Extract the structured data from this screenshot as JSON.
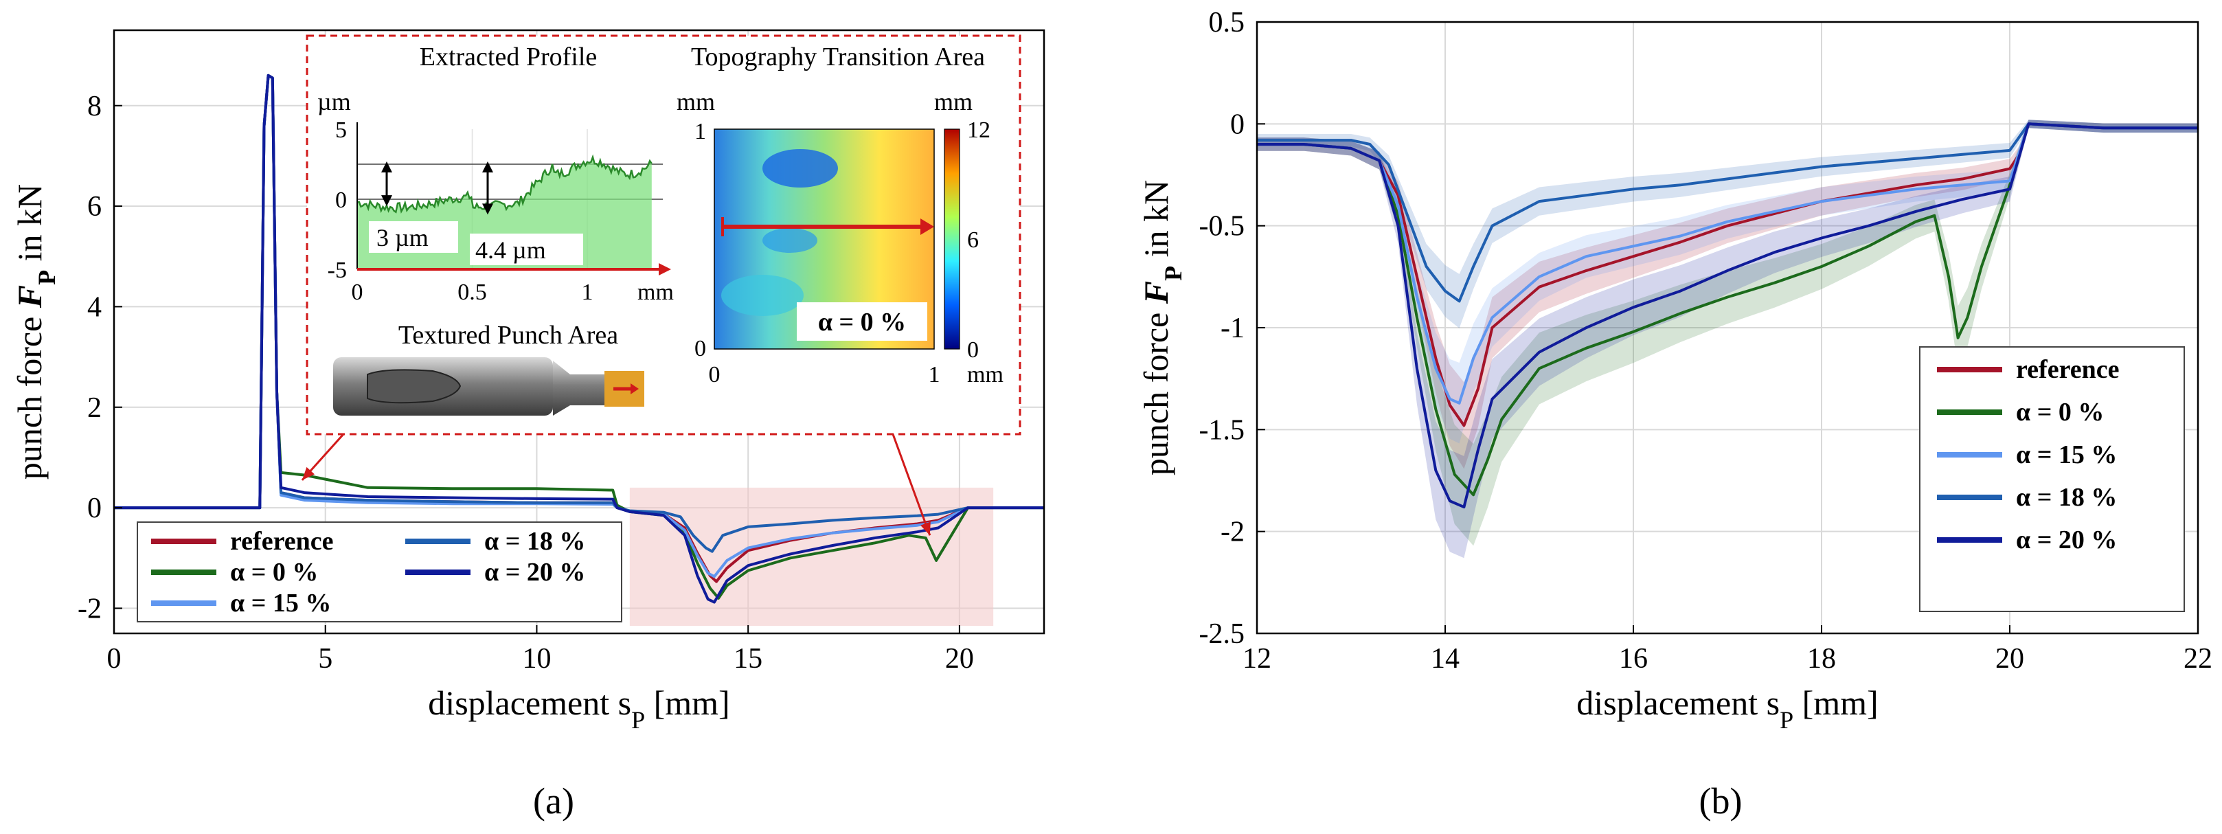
{
  "colors": {
    "reference": "#a5142a",
    "alpha0": "#1c6b1c",
    "alpha15": "#5f96f0",
    "alpha18": "#1f5fb0",
    "alpha20": "#101c9a",
    "highlight_box": "#d11a1a",
    "grid": "#d9d9d9"
  },
  "legend_labels": [
    "reference",
    "α = 0 %",
    "α = 15 %",
    "α = 18 %",
    "α = 20 %"
  ],
  "panel_a": {
    "caption": "(a)",
    "inset": {
      "profile_title": "Extracted Profile",
      "profile_unit": "µm",
      "profile_xunit": "mm",
      "profile_yticks": [
        "5",
        "0",
        "-5"
      ],
      "profile_xticks": [
        "0",
        "0.5",
        "1"
      ],
      "step1": "3 µm",
      "step2": "4.4 µm",
      "punch_title": "Textured Punch Area",
      "topo_title": "Topography Transition Area",
      "topo_unit_left": "mm",
      "topo_unit_right": "mm",
      "topo_unit_bottom": "mm",
      "topo_yticks": [
        "1",
        "0"
      ],
      "topo_xticks": [
        "0",
        "1"
      ],
      "colorbar_ticks": [
        "12",
        "6",
        "0"
      ],
      "topo_label": "α = 0 %"
    }
  },
  "panel_b": {
    "caption": "(b)"
  },
  "chart_data": [
    {
      "type": "line",
      "panel": "(a)",
      "xlabel": "displacement s_P [mm]",
      "ylabel": "punch force F_P in kN",
      "xlim": [
        0,
        22
      ],
      "ylim": [
        -2.5,
        9.5
      ],
      "xticks": [
        0,
        5,
        10,
        15,
        20
      ],
      "yticks": [
        -2,
        0,
        2,
        4,
        6,
        8
      ],
      "grid": true,
      "legend_position": "bottom-left",
      "series": [
        {
          "name": "reference",
          "x": [
            0,
            3.45,
            3.55,
            3.65,
            3.75,
            3.85,
            3.95,
            4.5,
            6,
            8,
            10,
            11.8,
            11.9,
            12.2,
            13,
            13.5,
            13.8,
            14.1,
            14.25,
            14.5,
            15,
            16,
            17,
            18,
            19,
            19.5,
            20.2,
            22
          ],
          "y": [
            0,
            0,
            7.6,
            8.6,
            8.55,
            2.3,
            0.3,
            0.2,
            0.15,
            0.12,
            0.1,
            0.1,
            0,
            -0.08,
            -0.12,
            -0.4,
            -0.9,
            -1.35,
            -1.47,
            -1.2,
            -0.85,
            -0.65,
            -0.5,
            -0.4,
            -0.32,
            -0.25,
            0,
            0
          ]
        },
        {
          "name": "α = 0 %",
          "x": [
            0,
            3.45,
            3.55,
            3.65,
            3.75,
            3.85,
            3.95,
            4.5,
            6,
            8,
            10,
            11.8,
            11.9,
            12.2,
            13,
            13.5,
            13.8,
            14.1,
            14.3,
            14.5,
            15,
            16,
            17,
            18,
            18.8,
            19.2,
            19.45,
            19.7,
            20.2,
            22
          ],
          "y": [
            0,
            0,
            7.6,
            8.6,
            8.55,
            2.3,
            0.7,
            0.65,
            0.4,
            0.38,
            0.38,
            0.35,
            0.05,
            -0.08,
            -0.15,
            -0.5,
            -1.1,
            -1.6,
            -1.8,
            -1.55,
            -1.25,
            -1.0,
            -0.85,
            -0.7,
            -0.55,
            -0.6,
            -1.05,
            -0.7,
            0,
            0
          ]
        },
        {
          "name": "α = 15 %",
          "x": [
            0,
            3.45,
            3.55,
            3.65,
            3.75,
            3.85,
            3.95,
            4.5,
            6,
            8,
            10,
            11.8,
            11.9,
            12.2,
            13,
            13.5,
            13.8,
            14.05,
            14.2,
            14.5,
            15,
            16,
            17,
            18,
            19,
            19.5,
            20.2,
            22
          ],
          "y": [
            0,
            0,
            7.6,
            8.6,
            8.55,
            2.3,
            0.25,
            0.15,
            0.1,
            0.08,
            0.08,
            0.07,
            0,
            -0.08,
            -0.12,
            -0.45,
            -0.95,
            -1.3,
            -1.37,
            -1.05,
            -0.8,
            -0.62,
            -0.5,
            -0.42,
            -0.35,
            -0.28,
            0,
            0
          ]
        },
        {
          "name": "α = 18 %",
          "x": [
            0,
            3.45,
            3.55,
            3.65,
            3.75,
            3.85,
            3.95,
            4.5,
            6,
            8,
            10,
            11.8,
            11.9,
            12.2,
            13,
            13.4,
            13.7,
            14.0,
            14.15,
            14.4,
            15,
            16,
            17,
            18,
            19,
            19.5,
            20.2,
            22
          ],
          "y": [
            0,
            0,
            7.6,
            8.6,
            8.55,
            2.3,
            0.3,
            0.2,
            0.15,
            0.12,
            0.1,
            0.1,
            0,
            -0.06,
            -0.09,
            -0.18,
            -0.55,
            -0.8,
            -0.87,
            -0.55,
            -0.38,
            -0.32,
            -0.25,
            -0.2,
            -0.16,
            -0.13,
            0,
            0
          ]
        },
        {
          "name": "α = 20 %",
          "x": [
            0,
            3.45,
            3.55,
            3.65,
            3.75,
            3.85,
            3.95,
            4.5,
            6,
            8,
            10,
            11.8,
            11.9,
            12.2,
            13,
            13.5,
            13.8,
            14.05,
            14.2,
            14.5,
            15,
            16,
            17,
            18,
            19,
            19.5,
            20.2,
            22
          ],
          "y": [
            0,
            0,
            7.6,
            8.6,
            8.55,
            2.3,
            0.4,
            0.3,
            0.22,
            0.2,
            0.18,
            0.17,
            0,
            -0.08,
            -0.15,
            -0.55,
            -1.35,
            -1.82,
            -1.88,
            -1.45,
            -1.15,
            -0.92,
            -0.75,
            -0.6,
            -0.48,
            -0.4,
            0,
            0
          ]
        }
      ]
    },
    {
      "type": "line",
      "panel": "(b)",
      "xlabel": "displacement s_P [mm]",
      "ylabel": "punch force F_P in kN",
      "xlim": [
        12,
        22
      ],
      "ylim": [
        -2.5,
        0.5
      ],
      "xticks": [
        12,
        14,
        16,
        18,
        20,
        22
      ],
      "yticks": [
        -2.5,
        -2,
        -1.5,
        -1,
        -0.5,
        0,
        0.5
      ],
      "grid": true,
      "legend_position": "bottom-right",
      "series": [
        {
          "name": "reference",
          "x": [
            12,
            12.5,
            13,
            13.3,
            13.5,
            13.7,
            13.9,
            14.05,
            14.2,
            14.35,
            14.5,
            15,
            15.5,
            16,
            16.5,
            17,
            17.5,
            18,
            18.5,
            19,
            19.5,
            20,
            20.1,
            20.2,
            21,
            22
          ],
          "y": [
            -0.1,
            -0.1,
            -0.12,
            -0.18,
            -0.35,
            -0.75,
            -1.15,
            -1.38,
            -1.48,
            -1.3,
            -1.0,
            -0.8,
            -0.72,
            -0.65,
            -0.58,
            -0.5,
            -0.44,
            -0.38,
            -0.34,
            -0.3,
            -0.27,
            -0.22,
            -0.15,
            0,
            -0.02,
            -0.02
          ]
        },
        {
          "name": "α = 0 %",
          "x": [
            12,
            12.5,
            13,
            13.3,
            13.5,
            13.7,
            13.9,
            14.1,
            14.3,
            14.45,
            14.6,
            15,
            15.5,
            16,
            16.5,
            17,
            17.5,
            18,
            18.5,
            19,
            19.2,
            19.35,
            19.45,
            19.55,
            19.7,
            20,
            20.2,
            21,
            22
          ],
          "y": [
            -0.1,
            -0.1,
            -0.12,
            -0.18,
            -0.45,
            -0.95,
            -1.4,
            -1.72,
            -1.82,
            -1.65,
            -1.45,
            -1.2,
            -1.1,
            -1.02,
            -0.93,
            -0.85,
            -0.78,
            -0.7,
            -0.6,
            -0.48,
            -0.45,
            -0.75,
            -1.05,
            -0.95,
            -0.7,
            -0.3,
            0,
            -0.02,
            -0.02
          ]
        },
        {
          "name": "α = 15 %",
          "x": [
            12,
            12.5,
            13,
            13.3,
            13.5,
            13.7,
            13.9,
            14.05,
            14.15,
            14.3,
            14.5,
            15,
            15.5,
            16,
            16.5,
            17,
            17.5,
            18,
            18.5,
            19,
            19.5,
            20,
            20.2,
            21,
            22
          ],
          "y": [
            -0.1,
            -0.1,
            -0.12,
            -0.18,
            -0.4,
            -0.85,
            -1.2,
            -1.35,
            -1.37,
            -1.15,
            -0.95,
            -0.75,
            -0.65,
            -0.6,
            -0.55,
            -0.48,
            -0.43,
            -0.38,
            -0.35,
            -0.32,
            -0.3,
            -0.28,
            0,
            -0.02,
            -0.02
          ]
        },
        {
          "name": "α = 18 %",
          "x": [
            12,
            12.5,
            13,
            13.2,
            13.4,
            13.6,
            13.8,
            14.0,
            14.15,
            14.3,
            14.5,
            15,
            15.5,
            16,
            16.5,
            17,
            17.5,
            18,
            18.5,
            19,
            19.5,
            20,
            20.2,
            21,
            22
          ],
          "y": [
            -0.08,
            -0.08,
            -0.08,
            -0.1,
            -0.2,
            -0.45,
            -0.7,
            -0.82,
            -0.87,
            -0.7,
            -0.5,
            -0.38,
            -0.35,
            -0.32,
            -0.3,
            -0.27,
            -0.24,
            -0.21,
            -0.19,
            -0.17,
            -0.15,
            -0.13,
            0,
            -0.02,
            -0.02
          ]
        },
        {
          "name": "α = 20 %",
          "x": [
            12,
            12.5,
            13,
            13.3,
            13.5,
            13.7,
            13.9,
            14.05,
            14.2,
            14.35,
            14.5,
            15,
            15.5,
            16,
            16.5,
            17,
            17.5,
            18,
            18.5,
            19,
            19.5,
            20,
            20.2,
            21,
            22
          ],
          "y": [
            -0.1,
            -0.1,
            -0.12,
            -0.18,
            -0.5,
            -1.2,
            -1.7,
            -1.85,
            -1.88,
            -1.6,
            -1.35,
            -1.12,
            -1.0,
            -0.9,
            -0.82,
            -0.72,
            -0.63,
            -0.56,
            -0.5,
            -0.43,
            -0.37,
            -0.32,
            0,
            -0.02,
            -0.02
          ]
        }
      ]
    }
  ]
}
